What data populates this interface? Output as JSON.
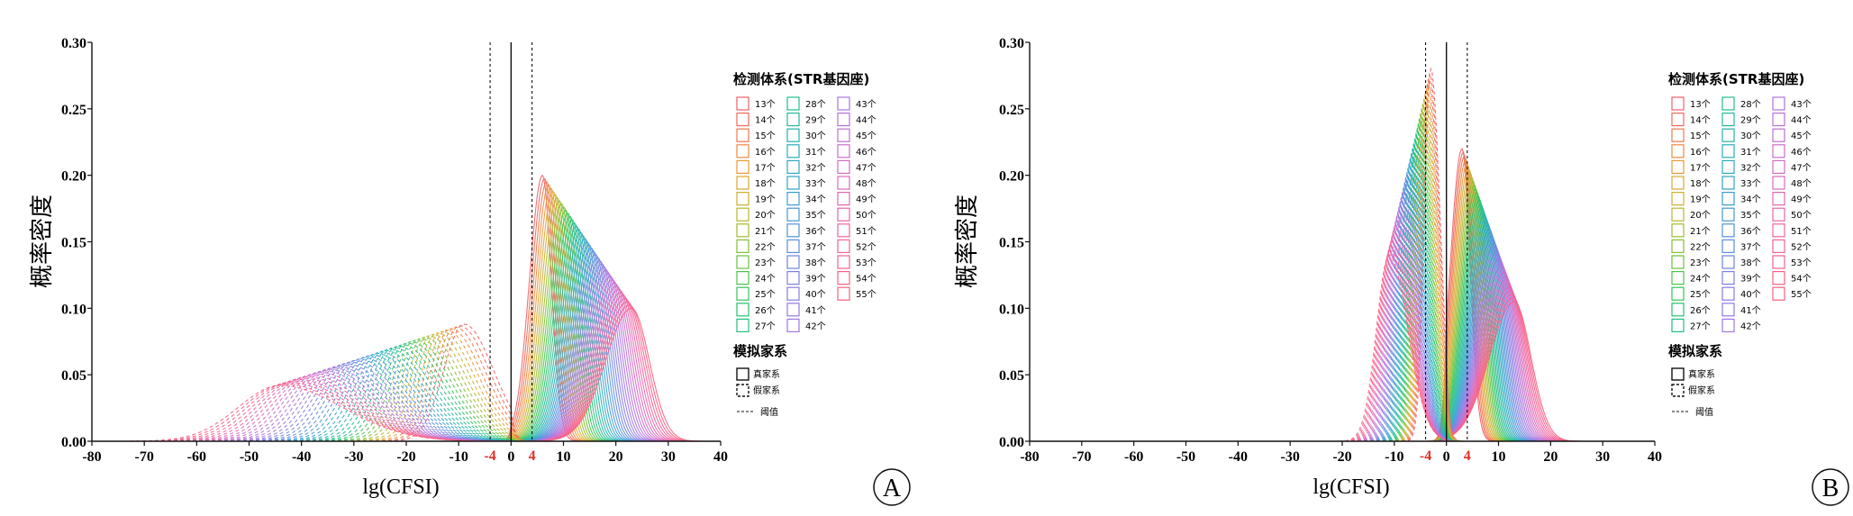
{
  "chart_data": [
    {
      "panel": "A",
      "type": "line",
      "ylabel": "概率密度",
      "xlabel": "lg(CFSI)",
      "xlim": [
        -80,
        40
      ],
      "ylim": [
        0,
        0.3
      ],
      "x_ticks": [
        "-80",
        "-70",
        "-60",
        "-50",
        "-40",
        "-30",
        "-20",
        "-10",
        "0",
        "10",
        "20",
        "30",
        "40"
      ],
      "y_ticks": [
        "0.00",
        "0.05",
        "0.10",
        "0.15",
        "0.20",
        "0.25",
        "0.30"
      ],
      "threshold_labels": [
        "-4",
        "4"
      ],
      "thresholds": [
        -4,
        4
      ],
      "series_groups": [
        {
          "group": "真家系",
          "style": "solid",
          "peak_x_first": 6,
          "peak_x_last": 23,
          "peak_y_first": 0.2,
          "peak_y_last": 0.1
        },
        {
          "group": "假家系",
          "style": "dashed",
          "peak_x_first": -9,
          "peak_x_last": -44,
          "peak_y_first": 0.088,
          "peak_y_last": 0.042
        }
      ],
      "panel_label": "A"
    },
    {
      "panel": "B",
      "type": "line",
      "ylabel": "概率密度",
      "xlabel": "lg(CFSI)",
      "xlim": [
        -80,
        40
      ],
      "ylim": [
        0,
        0.3
      ],
      "x_ticks": [
        "-80",
        "-70",
        "-60",
        "-50",
        "-40",
        "-30",
        "-20",
        "-10",
        "0",
        "10",
        "20",
        "30",
        "40"
      ],
      "y_ticks": [
        "0.00",
        "0.05",
        "0.10",
        "0.15",
        "0.20",
        "0.25",
        "0.30"
      ],
      "threshold_labels": [
        "-4",
        "4"
      ],
      "thresholds": [
        -4,
        4
      ],
      "series_groups": [
        {
          "group": "真家系",
          "style": "solid",
          "peak_x_first": 3,
          "peak_x_last": 13,
          "peak_y_first": 0.22,
          "peak_y_last": 0.105
        },
        {
          "group": "假家系",
          "style": "dashed",
          "peak_x_first": -3,
          "peak_x_last": -11,
          "peak_y_first": 0.28,
          "peak_y_last": 0.14
        }
      ],
      "panel_label": "B"
    }
  ],
  "legend": {
    "title": "检测体系(STR基因座)",
    "items": [
      "13个",
      "14个",
      "15个",
      "16个",
      "17个",
      "18个",
      "19个",
      "20个",
      "21个",
      "22个",
      "23个",
      "24个",
      "25个",
      "26个",
      "27个",
      "28个",
      "29个",
      "30个",
      "31个",
      "32个",
      "33个",
      "34个",
      "35个",
      "36个",
      "37个",
      "38个",
      "39个",
      "40个",
      "41个",
      "42个",
      "43个",
      "44个",
      "45个",
      "46个",
      "47个",
      "48个",
      "49个",
      "50个",
      "51个",
      "52个",
      "53个",
      "54个",
      "55个"
    ],
    "colors": [
      "#f0606a",
      "#f06a5a",
      "#ef784c",
      "#ee8a40",
      "#e99a38",
      "#dca632",
      "#cdb030",
      "#b8b62e",
      "#a1bb2e",
      "#86bf34",
      "#69c23e",
      "#4cc44a",
      "#35c459",
      "#27c26c",
      "#22c07e",
      "#22bd8e",
      "#23b99c",
      "#25b4a9",
      "#28afb5",
      "#2daabf",
      "#33a4c8",
      "#3b9ecf",
      "#4698d5",
      "#5292d9",
      "#5f8cdd",
      "#6c87e0",
      "#7a82e2",
      "#877de3",
      "#937ae2",
      "#9f77e0",
      "#aa74dd",
      "#b572d8",
      "#bf70d2",
      "#c96ecb",
      "#d26cc3",
      "#db6abb",
      "#e268b2",
      "#e966a9",
      "#ef64a0",
      "#f46397",
      "#f7628e",
      "#f96286",
      "#f9617f"
    ],
    "model_title": "模拟家系",
    "model_items": [
      "真家系",
      "假家系"
    ],
    "threshold_label": "阈值"
  }
}
